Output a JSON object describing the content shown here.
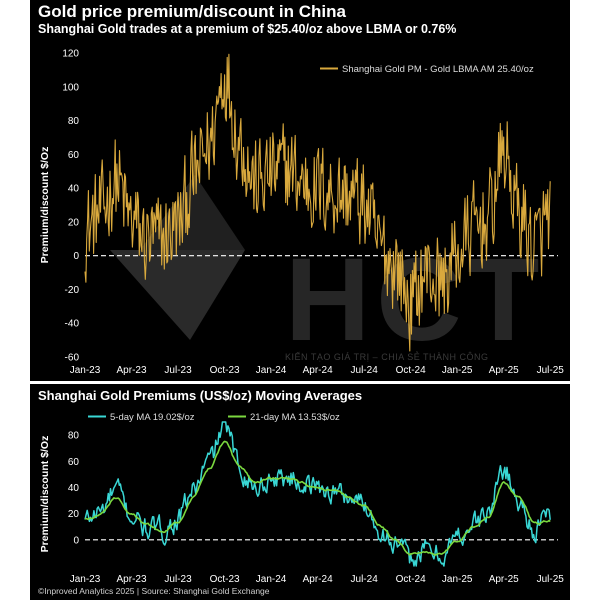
{
  "page": {
    "title": "Gold price premium/discount in China",
    "subtitle": "Shanghai Gold trades at a premium of $25.40/oz above LBMA or 0.76%",
    "footer": "©Inproved Analytics 2025 | Source: Shanghai Gold Exchange",
    "watermark": "HCT",
    "watermark_tagline": "KIẾN TẠO GIÁ TRỊ – CHIA SẺ THÀNH CÔNG"
  },
  "colors": {
    "background": "#000000",
    "gold": "#d9a93d",
    "ma5": "#39d7d5",
    "ma21": "#7bd83f",
    "text": "#ffffff",
    "grid": "#ffffff"
  },
  "chart_data": [
    {
      "type": "line",
      "title": "Gold price premium/discount in China",
      "ylabel": "Premium/discount $/Oz",
      "xlabel": "",
      "ylim": [
        -60,
        120
      ],
      "yticks": [
        -60,
        -40,
        -20,
        0,
        20,
        40,
        60,
        80,
        100,
        120
      ],
      "x_tick_labels": [
        "Jan-23",
        "Apr-23",
        "Jul-23",
        "Oct-23",
        "Jan-24",
        "Apr-24",
        "Jul-24",
        "Oct-24",
        "Jan-25",
        "Apr-25",
        "Jul-25"
      ],
      "zero_line": "dashed",
      "legend_position": "top-right",
      "series": [
        {
          "name": "Shanghai Gold PM - Gold LBMA AM 25.40/oz",
          "x": [
            "2023-01",
            "2023-02",
            "2023-03",
            "2023-04",
            "2023-05",
            "2023-06",
            "2023-07",
            "2023-08",
            "2023-09",
            "2023-10",
            "2023-11",
            "2023-12",
            "2024-01",
            "2024-02",
            "2024-03",
            "2024-04",
            "2024-05",
            "2024-06",
            "2024-07",
            "2024-08",
            "2024-09",
            "2024-10",
            "2024-11",
            "2024-12",
            "2025-01",
            "2025-02",
            "2025-03",
            "2025-04",
            "2025-05",
            "2025-06",
            "2025-07"
          ],
          "values": [
            15,
            25,
            45,
            20,
            8,
            10,
            18,
            45,
            65,
            108,
            68,
            42,
            48,
            52,
            44,
            40,
            38,
            36,
            30,
            5,
            -5,
            -28,
            -10,
            -15,
            0,
            15,
            22,
            60,
            25,
            5,
            25
          ]
        }
      ]
    },
    {
      "type": "line",
      "title": "Shanghai Gold Premiums (US$/oz) Moving Averages",
      "ylabel": "Premium/discount $/Oz",
      "xlabel": "",
      "ylim": [
        -20,
        90
      ],
      "yticks": [
        0,
        20,
        40,
        60,
        80
      ],
      "x_tick_labels": [
        "Jan-23",
        "Apr-23",
        "Jul-23",
        "Oct-23",
        "Jan-24",
        "Apr-24",
        "Jul-24",
        "Oct-24",
        "Jan-25",
        "Apr-25",
        "Jul-25"
      ],
      "zero_line": "dashed",
      "legend_position": "top-left",
      "series": [
        {
          "name": "5-day MA 19.02$/oz",
          "x": [
            "2023-01",
            "2023-02",
            "2023-03",
            "2023-04",
            "2023-05",
            "2023-06",
            "2023-07",
            "2023-08",
            "2023-09",
            "2023-10",
            "2023-11",
            "2023-12",
            "2024-01",
            "2024-02",
            "2024-03",
            "2024-04",
            "2024-05",
            "2024-06",
            "2024-07",
            "2024-08",
            "2024-09",
            "2024-10",
            "2024-11",
            "2024-12",
            "2025-01",
            "2025-02",
            "2025-03",
            "2025-04",
            "2025-05",
            "2025-06",
            "2025-07"
          ],
          "values": [
            15,
            22,
            38,
            18,
            8,
            7,
            16,
            38,
            60,
            88,
            55,
            40,
            47,
            48,
            44,
            40,
            37,
            33,
            28,
            8,
            -3,
            -15,
            -8,
            -12,
            2,
            12,
            20,
            55,
            28,
            8,
            19
          ]
        },
        {
          "name": "21-day MA 13.53$/oz",
          "x": [
            "2023-01",
            "2023-02",
            "2023-03",
            "2023-04",
            "2023-05",
            "2023-06",
            "2023-07",
            "2023-08",
            "2023-09",
            "2023-10",
            "2023-11",
            "2023-12",
            "2024-01",
            "2024-02",
            "2024-03",
            "2024-04",
            "2024-05",
            "2024-06",
            "2024-07",
            "2024-08",
            "2024-09",
            "2024-10",
            "2024-11",
            "2024-12",
            "2025-01",
            "2025-02",
            "2025-03",
            "2025-04",
            "2025-05",
            "2025-06",
            "2025-07"
          ],
          "values": [
            16,
            20,
            32,
            20,
            10,
            7,
            13,
            32,
            55,
            74,
            55,
            42,
            46,
            47,
            44,
            40,
            37,
            33,
            27,
            12,
            0,
            -10,
            -8,
            -10,
            0,
            10,
            18,
            42,
            32,
            12,
            14
          ]
        }
      ]
    }
  ]
}
